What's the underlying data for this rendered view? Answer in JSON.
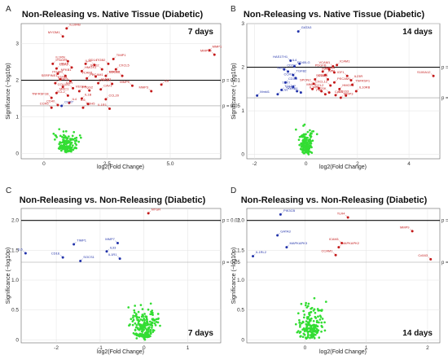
{
  "chart_data": [
    {
      "type": "scatter",
      "panel": "A",
      "title": "Non-Releasing vs. Native Tissue (Diabetic)",
      "timepoint": "7 days",
      "xlabel": "log2(Fold Change)",
      "ylabel": "Significance (−log10p)",
      "xlim": [
        -0.9,
        7.0
      ],
      "ylim": [
        -0.15,
        3.55
      ],
      "xticks": [
        0,
        2.5,
        5.0
      ],
      "xtick_labels": [
        "0",
        "2.5",
        "5.0"
      ],
      "yticks": [
        0,
        1,
        2,
        3
      ],
      "ytick_labels": [
        "0",
        "1",
        "2",
        "3"
      ],
      "thresholds": [
        {
          "y": 2.0,
          "label": "p = 0.01"
        },
        {
          "y": 1.3,
          "label": "p = 0.05"
        }
      ],
      "colors": {
        "ns": "#33dd33",
        "up": "#c41a1a",
        "down": "#2233aa"
      },
      "labeled_points": [
        {
          "label": "IL10RB",
          "x": 0.9,
          "y": 3.42,
          "group": "up"
        },
        {
          "label": "MYOM1",
          "x": 0.75,
          "y": 3.2,
          "group": "up"
        },
        {
          "label": "MMP1",
          "x": 6.55,
          "y": 2.82,
          "group": "up"
        },
        {
          "label": "MMP13",
          "x": 6.75,
          "y": 2.7,
          "group": "up"
        },
        {
          "label": "IFNGR1",
          "x": 0.35,
          "y": 2.45,
          "group": "up"
        },
        {
          "label": "IL1RN",
          "x": 0.95,
          "y": 2.52,
          "group": "up"
        },
        {
          "label": "CSF1",
          "x": 0.5,
          "y": 2.32,
          "group": "up"
        },
        {
          "label": "HIF1A",
          "x": 1.1,
          "y": 2.35,
          "group": "up"
        },
        {
          "label": "CD14",
          "x": 1.65,
          "y": 2.45,
          "group": "up"
        },
        {
          "label": "IL10",
          "x": 2.0,
          "y": 2.42,
          "group": "up"
        },
        {
          "label": "TIMP1",
          "x": 2.75,
          "y": 2.58,
          "group": "up"
        },
        {
          "label": "ITGB2",
          "x": 2.55,
          "y": 2.45,
          "group": "up"
        },
        {
          "label": "NFKB1",
          "x": 0.55,
          "y": 2.18,
          "group": "up"
        },
        {
          "label": "ITGAM",
          "x": 0.85,
          "y": 2.12,
          "group": "up"
        },
        {
          "label": "HMOX1",
          "x": 1.5,
          "y": 2.25,
          "group": "up"
        },
        {
          "label": "SOD2",
          "x": 2.3,
          "y": 2.3,
          "group": "up"
        },
        {
          "label": "CXCL5",
          "x": 2.85,
          "y": 2.3,
          "group": "up"
        },
        {
          "label": "SERPINE1",
          "x": 0.65,
          "y": 2.02,
          "group": "up"
        },
        {
          "label": "STAT3",
          "x": 0.45,
          "y": 1.92,
          "group": "up"
        },
        {
          "label": "TGFB1",
          "x": 1.05,
          "y": 1.98,
          "group": "up"
        },
        {
          "label": "PECAM1",
          "x": 1.7,
          "y": 2.05,
          "group": "up"
        },
        {
          "label": "VCAM1",
          "x": 2.05,
          "y": 2.1,
          "group": "up"
        },
        {
          "label": "SOCS3",
          "x": 2.45,
          "y": 2.12,
          "group": "up"
        },
        {
          "label": "CD163",
          "x": 3.1,
          "y": 2.12,
          "group": "up"
        },
        {
          "label": "IL6R",
          "x": 0.75,
          "y": 1.82,
          "group": "up"
        },
        {
          "label": "COL1A1",
          "x": 1.15,
          "y": 1.78,
          "group": "up"
        },
        {
          "label": "ICAM1",
          "x": 2.15,
          "y": 1.92,
          "group": "up"
        },
        {
          "label": "COL18",
          "x": 2.7,
          "y": 1.9,
          "group": "up"
        },
        {
          "label": "MRC1",
          "x": 0.5,
          "y": 1.65,
          "group": "up"
        },
        {
          "label": "CCL2",
          "x": 0.95,
          "y": 1.58,
          "group": "up"
        },
        {
          "label": "PTGS2",
          "x": 1.4,
          "y": 1.7,
          "group": "up"
        },
        {
          "label": "VEGFA",
          "x": 1.8,
          "y": 1.72,
          "group": "up"
        },
        {
          "label": "CAV1",
          "x": 2.25,
          "y": 1.75,
          "group": "up"
        },
        {
          "label": "MMP9",
          "x": 3.5,
          "y": 1.85,
          "group": "up"
        },
        {
          "label": "IL8",
          "x": 4.65,
          "y": 1.88,
          "group": "up"
        },
        {
          "label": "TNFRSF1B",
          "x": 0.3,
          "y": 1.52,
          "group": "up"
        },
        {
          "label": "IL1B",
          "x": 1.5,
          "y": 1.5,
          "group": "up"
        },
        {
          "label": "IL6",
          "x": 1.75,
          "y": 1.35,
          "group": "up"
        },
        {
          "label": "CCL20",
          "x": 2.45,
          "y": 1.48,
          "group": "up"
        },
        {
          "label": "MMP3",
          "x": 4.25,
          "y": 1.7,
          "group": "up"
        },
        {
          "label": "IL4",
          "x": 1.0,
          "y": 1.38,
          "group": "up"
        },
        {
          "label": "CD40",
          "x": 0.55,
          "y": 1.32,
          "group": "up"
        },
        {
          "label": "CDH5",
          "x": 1.55,
          "y": 1.25,
          "group": "up"
        },
        {
          "label": "CCR5",
          "x": 0.3,
          "y": 1.25,
          "group": "up"
        },
        {
          "label": "CCR7",
          "x": 0.7,
          "y": 1.3,
          "group": "down"
        },
        {
          "label": "IL1R1",
          "x": 2.6,
          "y": 1.22,
          "group": "up"
        }
      ]
    },
    {
      "type": "scatter",
      "panel": "B",
      "title": "Non-Releasing vs. Native Tissue (Diabetic)",
      "timepoint": "14 days",
      "xlabel": "log2(Fold Change)",
      "ylabel": "Significance (−log10p)",
      "xlim": [
        -2.3,
        5.2
      ],
      "ylim": [
        -0.1,
        3.0
      ],
      "xticks": [
        -2,
        0,
        2,
        4
      ],
      "xtick_labels": [
        "-2",
        "0",
        "2",
        "4"
      ],
      "yticks": [
        0,
        1,
        2,
        3
      ],
      "ytick_labels": [
        "0",
        "1",
        "2",
        "3"
      ],
      "thresholds": [
        {
          "y": 2.0,
          "label": "p = 0.01"
        },
        {
          "y": 1.3,
          "label": "p = 0.05"
        }
      ],
      "colors": {
        "ns": "#33dd33",
        "up": "#c41a1a",
        "down": "#2233aa"
      },
      "labeled_points": [
        {
          "label": "GATA3",
          "x": -0.3,
          "y": 2.82,
          "group": "down"
        },
        {
          "label": "HAS1TH1",
          "x": -0.6,
          "y": 2.15,
          "group": "down"
        },
        {
          "label": "CD40LG",
          "x": -0.45,
          "y": 2.02,
          "group": "down"
        },
        {
          "label": "IL4",
          "x": -0.25,
          "y": 2.08,
          "group": "down"
        },
        {
          "label": "CD28",
          "x": -0.85,
          "y": 1.95,
          "group": "down"
        },
        {
          "label": "SELL",
          "x": -0.7,
          "y": 1.9,
          "group": "down"
        },
        {
          "label": "TGFB2",
          "x": -0.5,
          "y": 1.82,
          "group": "down"
        },
        {
          "label": "CCR7",
          "x": -0.4,
          "y": 1.75,
          "group": "down"
        },
        {
          "label": "CD3G",
          "x": -0.8,
          "y": 1.65,
          "group": "down"
        },
        {
          "label": "TCF7",
          "x": -0.5,
          "y": 1.55,
          "group": "down"
        },
        {
          "label": "TOLLIP",
          "x": -0.95,
          "y": 1.48,
          "group": "down"
        },
        {
          "label": "ICOS",
          "x": -0.35,
          "y": 1.45,
          "group": "down"
        },
        {
          "label": "IL7R",
          "x": -1.1,
          "y": 1.38,
          "group": "down"
        },
        {
          "label": "KLRB1",
          "x": -0.2,
          "y": 1.42,
          "group": "down"
        },
        {
          "label": "Mmkl1",
          "x": -1.9,
          "y": 1.35,
          "group": "down"
        },
        {
          "label": "VCAM1",
          "x": 1.05,
          "y": 2.02,
          "group": "up"
        },
        {
          "label": "ICAM1",
          "x": 1.2,
          "y": 2.05,
          "group": "up"
        },
        {
          "label": "PDGFB",
          "x": 0.9,
          "y": 1.95,
          "group": "up"
        },
        {
          "label": "HIF1A",
          "x": 0.65,
          "y": 1.9,
          "group": "up"
        },
        {
          "label": "MMP7",
          "x": 1.1,
          "y": 1.88,
          "group": "up"
        },
        {
          "label": "APP",
          "x": 0.75,
          "y": 1.82,
          "group": "up"
        },
        {
          "label": "IGF1",
          "x": 1.6,
          "y": 1.8,
          "group": "up"
        },
        {
          "label": "STAT3",
          "x": 0.35,
          "y": 1.72,
          "group": "up"
        },
        {
          "label": "SOD2",
          "x": 0.85,
          "y": 1.72,
          "group": "up"
        },
        {
          "label": "IL23R",
          "x": 1.75,
          "y": 1.7,
          "group": "up"
        },
        {
          "label": "SPON2",
          "x": 0.3,
          "y": 1.62,
          "group": "up"
        },
        {
          "label": "PECAM1",
          "x": 1.1,
          "y": 1.65,
          "group": "up"
        },
        {
          "label": "CXCL12",
          "x": 0.95,
          "y": 1.58,
          "group": "up"
        },
        {
          "label": "TNFRSF1",
          "x": 1.8,
          "y": 1.6,
          "group": "up"
        },
        {
          "label": "MMP2",
          "x": 0.5,
          "y": 1.52,
          "group": "up"
        },
        {
          "label": "CCL2",
          "x": 0.25,
          "y": 1.5,
          "group": "up"
        },
        {
          "label": "IL1RN",
          "x": 0.6,
          "y": 1.45,
          "group": "up"
        },
        {
          "label": "HMOX1",
          "x": 1.3,
          "y": 1.5,
          "group": "up"
        },
        {
          "label": "CTSK",
          "x": 0.9,
          "y": 1.42,
          "group": "up"
        },
        {
          "label": "IL10RB",
          "x": 1.95,
          "y": 1.45,
          "group": "up"
        },
        {
          "label": "FN1",
          "x": 0.75,
          "y": 1.38,
          "group": "up"
        },
        {
          "label": "CD163",
          "x": 1.15,
          "y": 1.36,
          "group": "up"
        },
        {
          "label": "CAV1",
          "x": 1.55,
          "y": 1.35,
          "group": "up"
        },
        {
          "label": "MMP3",
          "x": 1.35,
          "y": 1.3,
          "group": "up"
        },
        {
          "label": "S100A12",
          "x": 4.95,
          "y": 1.8,
          "group": "up"
        }
      ]
    },
    {
      "type": "scatter",
      "panel": "C",
      "title": "Non-Releasing vs. Non-Releasing (Diabetic)",
      "timepoint": "7 days",
      "xlabel": "log2(Fold Change)",
      "ylabel": "Significance (−log10p)",
      "xlim": [
        -2.8,
        1.75
      ],
      "ylim": [
        -0.05,
        2.2
      ],
      "xticks": [
        -2,
        -1,
        0,
        1
      ],
      "xtick_labels": [
        "-2",
        "-1",
        "0",
        "1"
      ],
      "yticks": [
        0,
        0.5,
        1.0,
        1.5,
        2.0
      ],
      "ytick_labels": [
        "0",
        "0.5",
        "1.0",
        "1.5",
        "2.0"
      ],
      "thresholds": [
        {
          "y": 2.0,
          "label": "p = 0.01"
        },
        {
          "y": 1.3,
          "label": "p = 0.05"
        }
      ],
      "colors": {
        "ns": "#33dd33",
        "up": "#c41a1a",
        "down": "#2233aa"
      },
      "labeled_points": [
        {
          "label": "NTGR",
          "x": 0.1,
          "y": 2.12,
          "group": "up"
        },
        {
          "label": "IL6",
          "x": -2.7,
          "y": 1.45,
          "group": "down"
        },
        {
          "label": "TIMP1",
          "x": -1.6,
          "y": 1.6,
          "group": "down"
        },
        {
          "label": "CD1E",
          "x": -1.85,
          "y": 1.38,
          "group": "down"
        },
        {
          "label": "SOCS1",
          "x": -1.45,
          "y": 1.32,
          "group": "down"
        },
        {
          "label": "MMP7",
          "x": -0.6,
          "y": 1.62,
          "group": "down"
        },
        {
          "label": "IL33",
          "x": -0.85,
          "y": 1.48,
          "group": "down"
        },
        {
          "label": "IL1R1",
          "x": -0.55,
          "y": 1.36,
          "group": "down"
        }
      ]
    },
    {
      "type": "scatter",
      "panel": "D",
      "title": "Non-Releasing vs. Non-Releasing (Diabetic)",
      "timepoint": "14 days",
      "xlabel": "log2(Fold Change)",
      "ylabel": "Significance (−log10p)",
      "xlim": [
        -0.95,
        2.2
      ],
      "ylim": [
        -0.05,
        2.2
      ],
      "xticks": [
        0,
        1,
        2
      ],
      "xtick_labels": [
        "0",
        "1",
        "2"
      ],
      "yticks": [
        0,
        0.5,
        1.0,
        1.5,
        2.0
      ],
      "ytick_labels": [
        "0",
        "0.5",
        "1.0",
        "1.5",
        "2.0"
      ],
      "thresholds": [
        {
          "y": 2.0,
          "label": "p = 0.01"
        },
        {
          "y": 1.3,
          "label": "p = 0.05"
        }
      ],
      "colors": {
        "ns": "#33dd33",
        "up": "#c41a1a",
        "down": "#2233aa"
      },
      "labeled_points": [
        {
          "label": "PIK3CB",
          "x": -0.4,
          "y": 2.1,
          "group": "down"
        },
        {
          "label": "TLR4",
          "x": 0.7,
          "y": 2.05,
          "group": "up"
        },
        {
          "label": "GATA3",
          "x": -0.45,
          "y": 1.75,
          "group": "down"
        },
        {
          "label": "MMP9",
          "x": 1.75,
          "y": 1.82,
          "group": "up"
        },
        {
          "label": "MAPKAPK3",
          "x": -0.3,
          "y": 1.55,
          "group": "down"
        },
        {
          "label": "ICAM1",
          "x": 0.6,
          "y": 1.62,
          "group": "up"
        },
        {
          "label": "MAPKAPK2",
          "x": 0.55,
          "y": 1.55,
          "group": "up"
        },
        {
          "label": "CCAM1",
          "x": 0.5,
          "y": 1.42,
          "group": "up"
        },
        {
          "label": "IL1RL2",
          "x": -0.85,
          "y": 1.4,
          "group": "down"
        },
        {
          "label": "Cd163",
          "x": 2.05,
          "y": 1.35,
          "group": "up"
        }
      ]
    }
  ]
}
